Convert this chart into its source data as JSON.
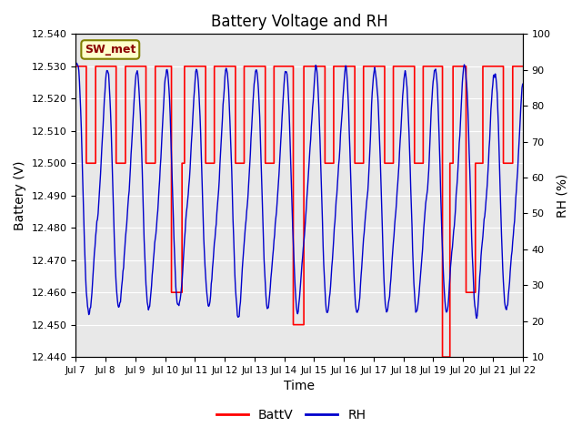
{
  "title": "Battery Voltage and RH",
  "xlabel": "Time",
  "ylabel_left": "Battery (V)",
  "ylabel_right": "RH (%)",
  "station_label": "SW_met",
  "ylim_left": [
    12.44,
    12.54
  ],
  "ylim_right": [
    10,
    100
  ],
  "yticks_left": [
    12.44,
    12.45,
    12.46,
    12.47,
    12.48,
    12.49,
    12.5,
    12.51,
    12.52,
    12.53,
    12.54
  ],
  "yticks_right": [
    10,
    20,
    30,
    40,
    50,
    60,
    70,
    80,
    90,
    100
  ],
  "xtick_labels": [
    "Jul 7",
    "Jul 8",
    "Jul 9",
    "Jul 10",
    "Jul 11",
    "Jul 12",
    "Jul 13",
    "Jul 14",
    "Jul 15",
    "Jul 16",
    "Jul 17",
    "Jul 18",
    "Jul 19",
    "Jul 20",
    "Jul 21",
    "Jul 22"
  ],
  "color_battv": "#ff0000",
  "color_rh": "#0000cc",
  "color_bg_inner": "#e8e8e8",
  "legend_battv": "BattV",
  "legend_rh": "RH"
}
